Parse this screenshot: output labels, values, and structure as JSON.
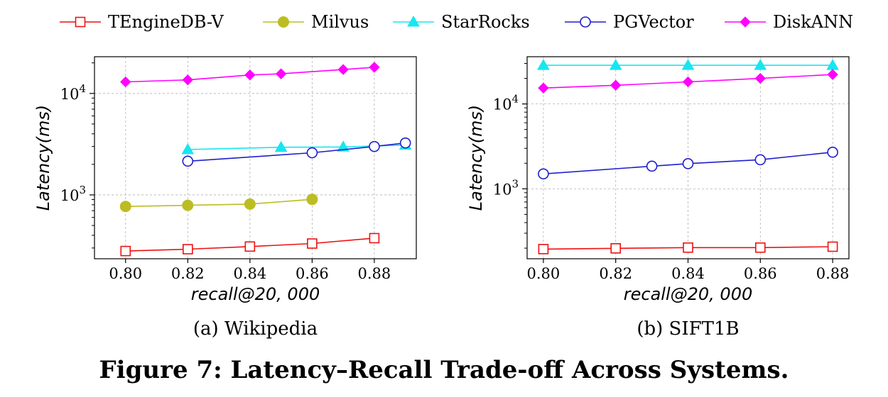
{
  "legend": [
    {
      "name": "TEngineDB-V",
      "color": "#ee1111",
      "marker": "square-open"
    },
    {
      "name": "Milvus",
      "color": "#bcbd22",
      "marker": "circle-filled"
    },
    {
      "name": "StarRocks",
      "color": "#17e6f0",
      "marker": "triangle-filled"
    },
    {
      "name": "PGVector",
      "color": "#1f1fcc",
      "marker": "circle-open"
    },
    {
      "name": "DiskANN",
      "color": "#ff00ff",
      "marker": "diamond-filled"
    }
  ],
  "caption": "Figure 7: Latency–Recall Trade-off Across Systems.",
  "chart_data": [
    {
      "type": "line",
      "subcaption": "(a) Wikipedia",
      "xlabel": "recall@20, 000",
      "ylabel": "Latency(ms)",
      "yscale": "log",
      "xlim": [
        0.79,
        0.8935
      ],
      "ylim": [
        235,
        23000
      ],
      "xticks": [
        0.8,
        0.82,
        0.84,
        0.86,
        0.88
      ],
      "xtick_labels": [
        "0.80",
        "0.82",
        "0.84",
        "0.86",
        "0.88"
      ],
      "yticks": [
        1000,
        10000
      ],
      "ytick_labels": [
        {
          "base": "10",
          "exp": "3"
        },
        {
          "base": "10",
          "exp": "4"
        }
      ],
      "grid": true,
      "series": [
        {
          "name": "TEngineDB-V",
          "x": [
            0.8,
            0.82,
            0.84,
            0.86,
            0.88
          ],
          "y": [
            280,
            292,
            310,
            332,
            375
          ]
        },
        {
          "name": "Milvus",
          "x": [
            0.8,
            0.82,
            0.84,
            0.86
          ],
          "y": [
            770,
            790,
            812,
            905
          ]
        },
        {
          "name": "StarRocks",
          "x": [
            0.82,
            0.85,
            0.87,
            0.89
          ],
          "y": [
            2800,
            2950,
            2970,
            3100
          ]
        },
        {
          "name": "PGVector",
          "x": [
            0.82,
            0.86,
            0.88,
            0.89
          ],
          "y": [
            2150,
            2600,
            3000,
            3250
          ]
        },
        {
          "name": "DiskANN",
          "x": [
            0.8,
            0.82,
            0.84,
            0.85,
            0.87,
            0.88
          ],
          "y": [
            13000,
            13600,
            15200,
            15600,
            17200,
            18100
          ]
        }
      ]
    },
    {
      "type": "line",
      "subcaption": "(b) SIFT1B",
      "xlabel": "recall@20, 000",
      "ylabel": "Latency(ms)",
      "yscale": "log",
      "xlim": [
        0.7955,
        0.8845
      ],
      "ylim": [
        150,
        36000
      ],
      "xticks": [
        0.8,
        0.82,
        0.84,
        0.86,
        0.88
      ],
      "xtick_labels": [
        "0.80",
        "0.82",
        "0.84",
        "0.86",
        "0.88"
      ],
      "yticks": [
        1000,
        10000
      ],
      "ytick_labels": [
        {
          "base": "10",
          "exp": "3"
        },
        {
          "base": "10",
          "exp": "4"
        }
      ],
      "grid": true,
      "series": [
        {
          "name": "TEngineDB-V",
          "x": [
            0.8,
            0.82,
            0.84,
            0.86,
            0.88
          ],
          "y": [
            195,
            199,
            203,
            203,
            208
          ]
        },
        {
          "name": "StarRocks",
          "x": [
            0.8,
            0.82,
            0.84,
            0.86,
            0.88
          ],
          "y": [
            28500,
            28500,
            28500,
            28500,
            28500
          ]
        },
        {
          "name": "PGVector",
          "x": [
            0.8,
            0.83,
            0.84,
            0.86,
            0.88
          ],
          "y": [
            1500,
            1850,
            1980,
            2200,
            2700
          ]
        },
        {
          "name": "DiskANN",
          "x": [
            0.8,
            0.82,
            0.84,
            0.86,
            0.88
          ],
          "y": [
            15400,
            16600,
            18200,
            20000,
            22200
          ]
        }
      ]
    }
  ]
}
